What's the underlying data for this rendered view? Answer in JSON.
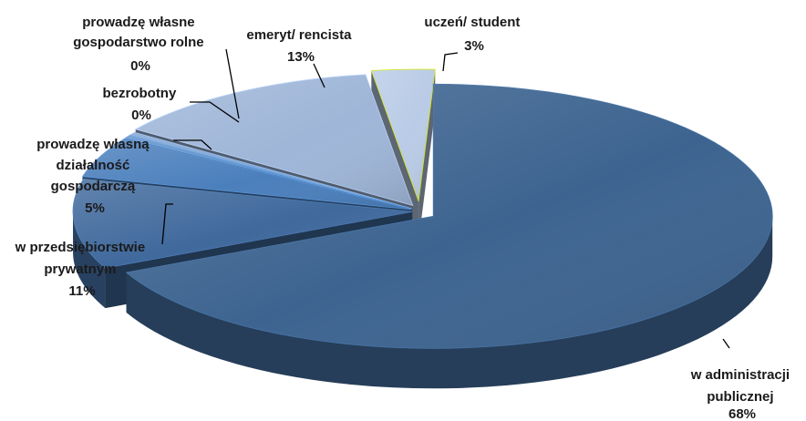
{
  "chart_data": {
    "type": "pie",
    "style": "3d-exploded",
    "title": "",
    "slices": [
      {
        "id": "admin",
        "label_lines": [
          "w administracji",
          "publicznej"
        ],
        "value_text": "68%",
        "value": 68,
        "color": "#3d6490"
      },
      {
        "id": "private",
        "label_lines": [
          "w przedsiębiorstwie",
          "prywatnym"
        ],
        "value_text": "11%",
        "value": 11,
        "color": "#40699c"
      },
      {
        "id": "business",
        "label_lines": [
          "prowadzę własną",
          "działalność",
          "gospodarczą"
        ],
        "value_text": "5%",
        "value": 5,
        "color": "#4b7fbc"
      },
      {
        "id": "unemployed",
        "label_lines": [
          "bezrobotny"
        ],
        "value_text": "0%",
        "value": 0,
        "color": "#5b8fc9"
      },
      {
        "id": "farm",
        "label_lines": [
          "prowadzę własne",
          "gospodarstwo rolne"
        ],
        "value_text": "0%",
        "value": 0,
        "color": "#7fa3d0"
      },
      {
        "id": "retired",
        "label_lines": [
          "emeryt/ rencista"
        ],
        "value_text": "13%",
        "value": 13,
        "color": "#9fb6d8"
      },
      {
        "id": "student",
        "label_lines": [
          "uczeń/ student"
        ],
        "value_text": "3%",
        "value": 3,
        "color": "#b9cbe6"
      }
    ]
  }
}
